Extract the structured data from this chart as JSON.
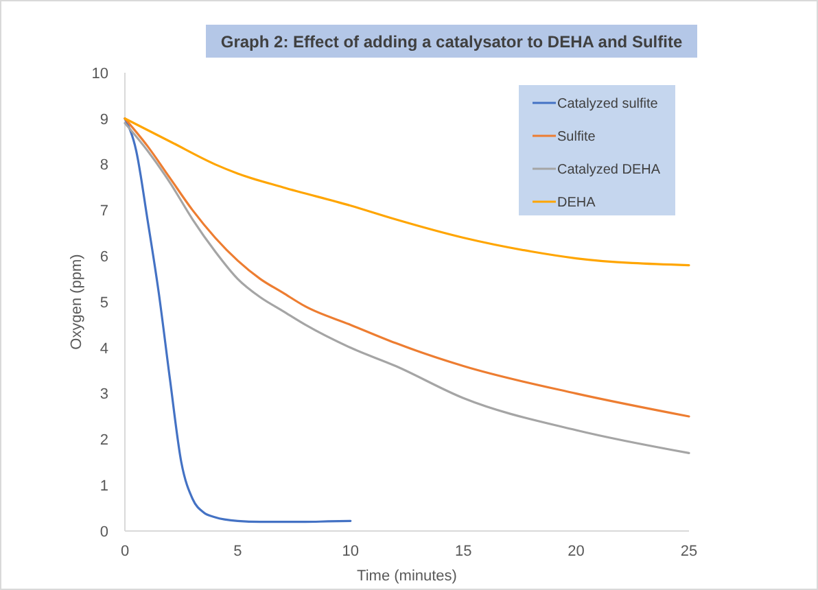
{
  "chart_data": {
    "type": "line",
    "title": "Graph 2: Effect of adding a catalysator to DEHA and Sulfite",
    "xlabel": "Time (minutes)",
    "ylabel": "Oxygen (ppm)",
    "xlim": [
      0,
      25
    ],
    "xticks": [
      0,
      5,
      10,
      15,
      20,
      25
    ],
    "ylim": [
      0,
      10
    ],
    "yticks": [
      0,
      1,
      2,
      3,
      4,
      5,
      6,
      7,
      8,
      9,
      10
    ],
    "grid": false,
    "legend": "top right",
    "marker": "none",
    "line_style": "solid",
    "series": [
      {
        "name": "Catalyzed sulfite",
        "color": "#4472c4",
        "x": [
          0,
          0.5,
          1,
          1.5,
          2,
          2.5,
          3,
          3.5,
          4,
          5,
          6,
          7,
          8,
          9,
          10
        ],
        "values": [
          9,
          8.3,
          6.8,
          5.2,
          3.3,
          1.5,
          0.7,
          0.4,
          0.3,
          0.22,
          0.2,
          0.2,
          0.2,
          0.21,
          0.22
        ]
      },
      {
        "name": "Sulfite",
        "color": "#ed7d31",
        "x": [
          0,
          1,
          2,
          3,
          4,
          5,
          6,
          7,
          8,
          10,
          12,
          15,
          20,
          25
        ],
        "values": [
          9,
          8.4,
          7.7,
          7.0,
          6.4,
          5.9,
          5.5,
          5.2,
          4.9,
          4.5,
          4.1,
          3.6,
          3.0,
          2.5
        ]
      },
      {
        "name": "Catalyzed DEHA",
        "color": "#a5a5a5",
        "x": [
          0,
          1,
          2,
          3,
          4,
          5,
          6,
          7,
          8,
          10,
          12,
          15,
          20,
          25
        ],
        "values": [
          8.9,
          8.3,
          7.6,
          6.8,
          6.1,
          5.5,
          5.1,
          4.8,
          4.5,
          4.0,
          3.6,
          2.9,
          2.2,
          1.7
        ]
      },
      {
        "name": "DEHA",
        "color": "#ffa500",
        "x": [
          0,
          2,
          4,
          5,
          7,
          10,
          12,
          15,
          18,
          20,
          25
        ],
        "values": [
          9,
          8.5,
          8.0,
          7.8,
          7.5,
          7.1,
          6.8,
          6.4,
          6.1,
          5.95,
          5.8
        ]
      }
    ]
  }
}
